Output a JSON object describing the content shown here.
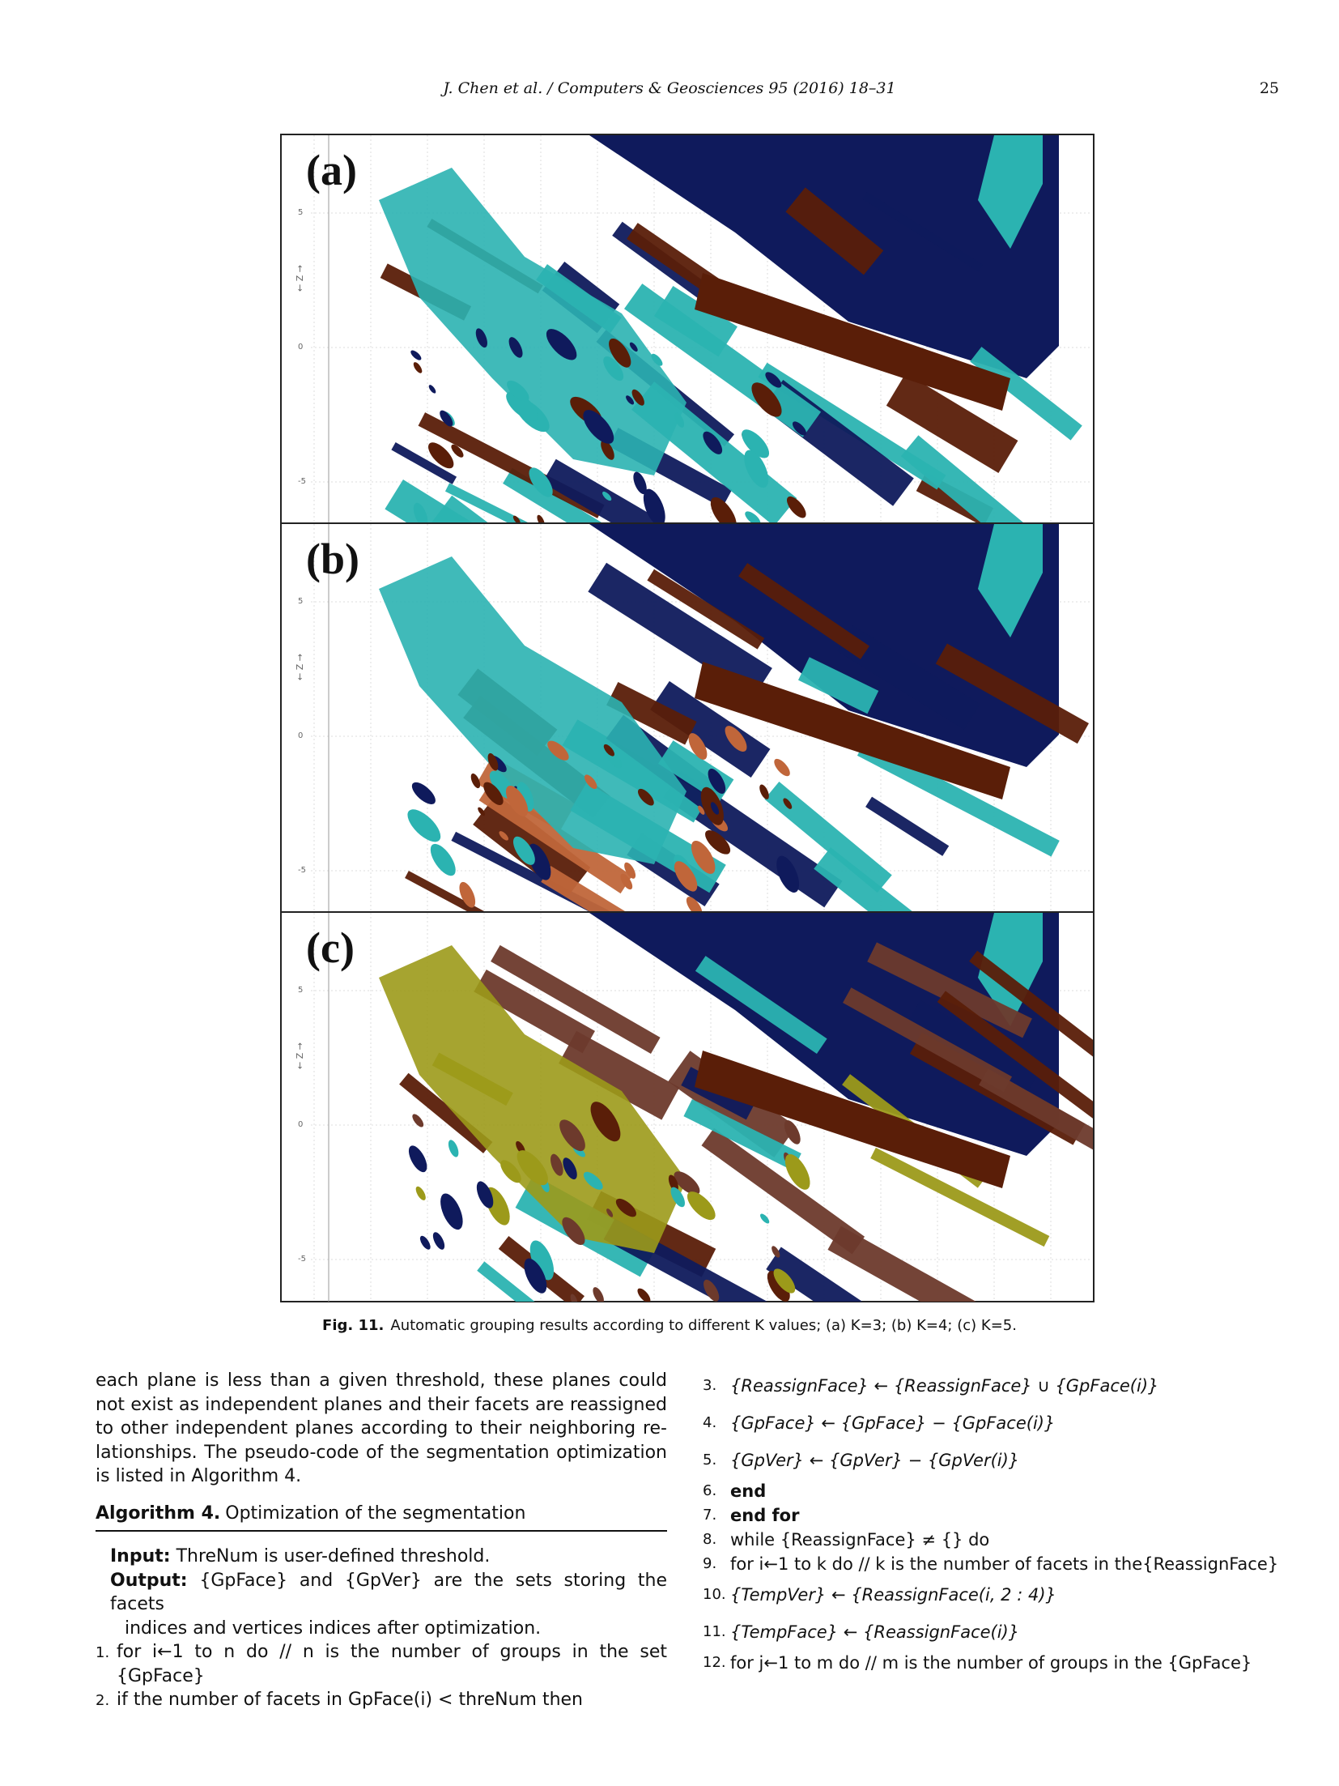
{
  "header": {
    "running_head": "J. Chen et al. / Computers & Geosciences 95 (2016) 18–31",
    "page_number": "25"
  },
  "figure": {
    "panels": [
      {
        "label": "(a)",
        "axis_label": "← Z →",
        "ticks": [
          "5",
          "0",
          "-5"
        ],
        "colors": [
          "#0f1a5c",
          "#2bb3b1",
          "#5a1e08"
        ]
      },
      {
        "label": "(b)",
        "axis_label": "← Z →",
        "ticks": [
          "5",
          "0",
          "-5"
        ],
        "colors": [
          "#0f1a5c",
          "#2bb3b1",
          "#5a1e08",
          "#c0663a"
        ]
      },
      {
        "label": "(c)",
        "axis_label": "← Z →",
        "ticks": [
          "5",
          "0",
          "-5"
        ],
        "colors": [
          "#0f1a5c",
          "#2bb3b1",
          "#5a1e08",
          "#9c9a1a",
          "#6d3a2c"
        ]
      }
    ],
    "caption_label": "Fig. 11.",
    "caption_text": "Automatic grouping results according to different K values; (a) K=3; (b) K=4; (c) K=5."
  },
  "body": {
    "paragraph": "each plane is less than a given threshold, these planes could not exist as independent planes and their facets are reassigned to other independent planes according to their neighboring re-lationships. The pseudo-code of the segmentation optimization is listed in Algorithm 4.",
    "algorithm_label": "Algorithm 4.",
    "algorithm_title": "Optimization of the segmentation",
    "input_label": "Input:",
    "input_text": " ThreNum is user-defined threshold.",
    "output_label": "Output:",
    "output_text_1": " {GpFace} and {GpVer} are the sets storing the facets",
    "output_text_2": "indices and vertices indices after optimization.",
    "lines": [
      {
        "no": "1.",
        "text": "for i←1 to n do // n is the number of groups in the set {GpFace}"
      },
      {
        "no": "2.",
        "text": "if the number of facets in GpFace(i) < threNum then"
      },
      {
        "no": "3.",
        "text": "{ReassignFace} ← {ReassignFace} ∪ {GpFace(i)}"
      },
      {
        "no": "4.",
        "text": "{GpFace} ← {GpFace} − {GpFace(i)}"
      },
      {
        "no": "5.",
        "text": "{GpVer} ← {GpVer} − {GpVer(i)}"
      },
      {
        "no": "6.",
        "text": "end"
      },
      {
        "no": "7.",
        "text": "end for"
      },
      {
        "no": "8.",
        "text": "while {ReassignFace} ≠ {} do"
      },
      {
        "no": "9.",
        "text": "for i←1 to k do // k is the number of facets in the{ReassignFace}"
      },
      {
        "no": "10.",
        "text": "{TempVer} ← {ReassignFace(i, 2 : 4)}"
      },
      {
        "no": "11.",
        "text": "{TempFace} ← {ReassignFace(i)}"
      },
      {
        "no": "12.",
        "text": "for j←1 to m do // m is the number of groups in the {GpFace}"
      }
    ]
  }
}
